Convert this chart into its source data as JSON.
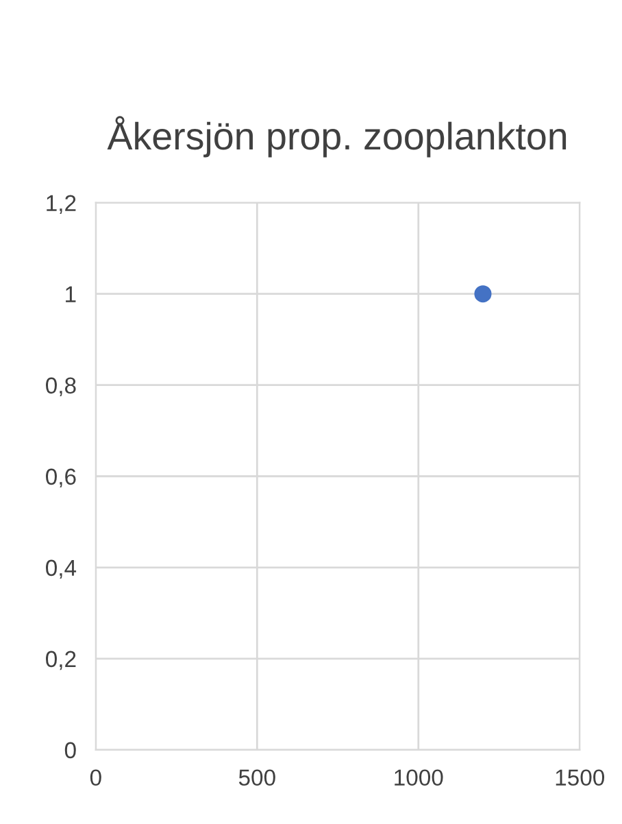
{
  "chart_data": {
    "type": "scatter",
    "title": "Åkersjön prop. zooplankton",
    "x": [
      1200
    ],
    "values": [
      1
    ],
    "color": "#4472c4",
    "marker": "circle",
    "xlim": [
      0,
      1500
    ],
    "xticks": [
      0,
      500,
      1000,
      1500
    ],
    "ylim": [
      0,
      1.2
    ],
    "yticks": [
      {
        "value": 0,
        "label": "0"
      },
      {
        "value": 0.2,
        "label": "0,2"
      },
      {
        "value": 0.4,
        "label": "0,4"
      },
      {
        "value": 0.6,
        "label": "0,6"
      },
      {
        "value": 0.8,
        "label": "0,8"
      },
      {
        "value": 1,
        "label": "1"
      },
      {
        "value": 1.2,
        "label": "1,2"
      }
    ],
    "grid": true
  }
}
